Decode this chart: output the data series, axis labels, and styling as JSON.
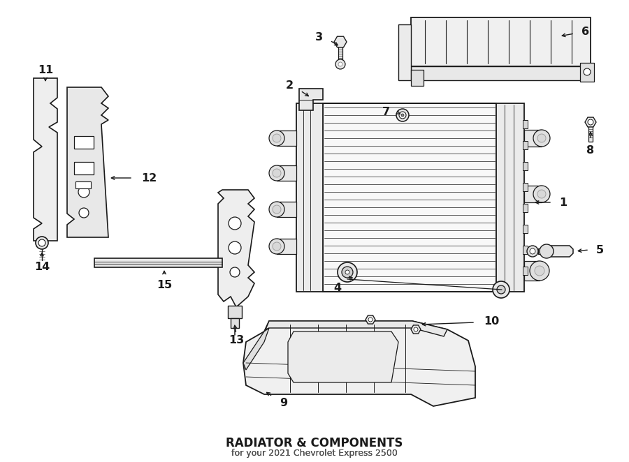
{
  "bg_color": "#ffffff",
  "line_color": "#1a1a1a",
  "lw": 1.1,
  "title": "RADIATOR & COMPONENTS",
  "subtitle": "for your 2021 Chevrolet Express 2500"
}
